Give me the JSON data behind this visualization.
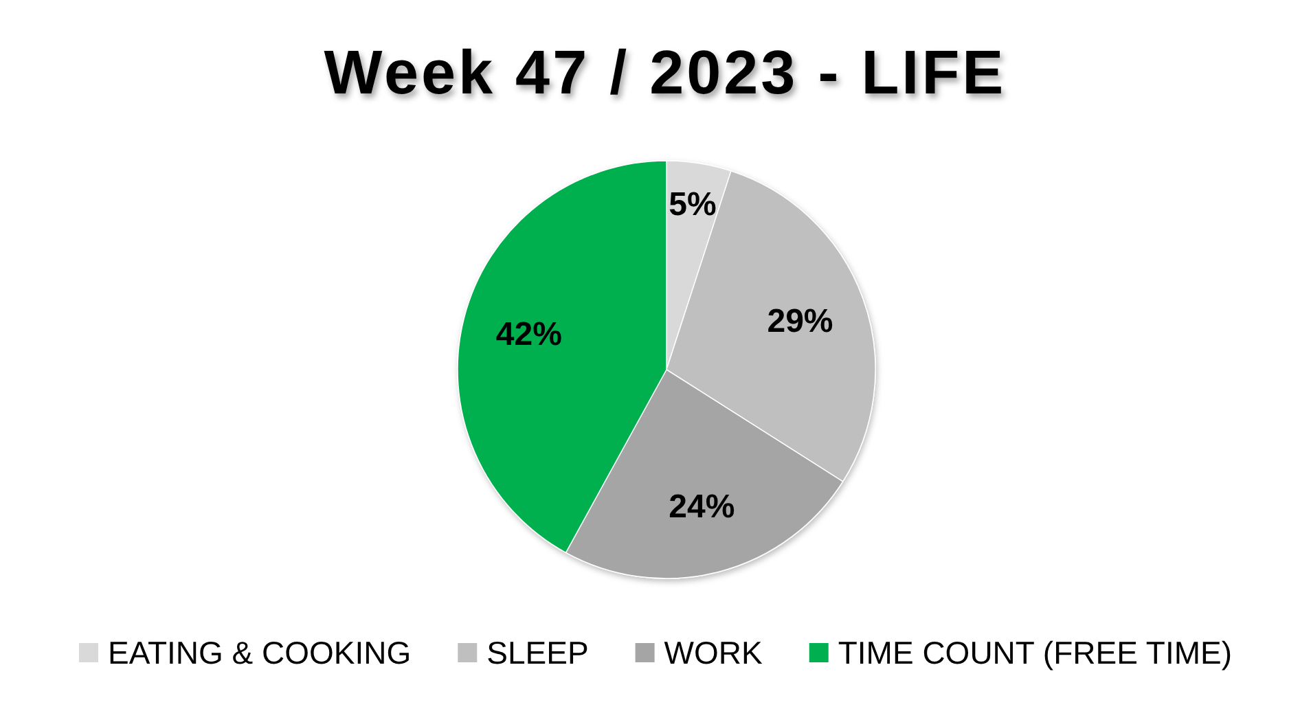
{
  "chart_data": {
    "type": "pie",
    "title": "Week 47 / 2023 - LIFE",
    "categories": [
      "EATING & COOKING",
      "SLEEP",
      "WORK",
      "TIME COUNT (FREE TIME)"
    ],
    "values": [
      5,
      29,
      24,
      42
    ],
    "value_labels": [
      "5%",
      "29%",
      "24%",
      "42%"
    ],
    "colors": [
      "#d9d9d9",
      "#bfbfbf",
      "#a5a5a5",
      "#00b050"
    ],
    "legend": "bottom"
  }
}
